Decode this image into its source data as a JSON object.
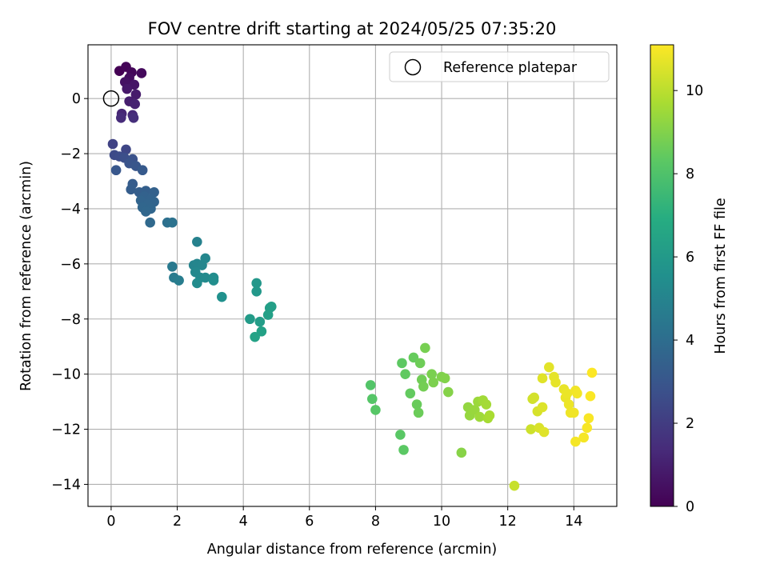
{
  "chart_data": {
    "type": "scatter",
    "title": "FOV centre drift starting at 2024/05/25 07:35:20",
    "xlabel": "Angular distance from reference (arcmin)",
    "ylabel": "Rotation from reference (arcmin)",
    "xlim": [
      -0.7,
      15.3
    ],
    "ylim": [
      -14.8,
      1.95
    ],
    "x_ticks": [
      0,
      2,
      4,
      6,
      8,
      10,
      12,
      14
    ],
    "y_ticks": [
      0,
      -2,
      -4,
      -6,
      -8,
      -10,
      -12,
      -14
    ],
    "grid": true,
    "legend": {
      "placement": "top-right",
      "entries": [
        "Reference platepar"
      ]
    },
    "reference_point": {
      "x": 0,
      "y": 0,
      "label": "Reference platepar"
    },
    "colorbar": {
      "label": "Hours from first FF file",
      "colormap": "viridis",
      "range": [
        0,
        11.1
      ],
      "ticks": [
        0,
        2,
        4,
        6,
        8,
        10
      ]
    },
    "points": [
      {
        "x": 0.25,
        "y": 1.0,
        "h": 0.0
      },
      {
        "x": 0.45,
        "y": 1.15,
        "h": 0.1
      },
      {
        "x": 0.62,
        "y": 0.95,
        "h": 0.2
      },
      {
        "x": 0.92,
        "y": 0.92,
        "h": 0.3
      },
      {
        "x": 0.55,
        "y": 0.75,
        "h": 0.4
      },
      {
        "x": 0.42,
        "y": 0.6,
        "h": 0.55
      },
      {
        "x": 0.7,
        "y": 0.5,
        "h": 0.65
      },
      {
        "x": 0.48,
        "y": 0.35,
        "h": 0.75
      },
      {
        "x": 0.75,
        "y": 0.15,
        "h": 0.85
      },
      {
        "x": 0.55,
        "y": -0.1,
        "h": 0.95
      },
      {
        "x": 0.72,
        "y": -0.2,
        "h": 1.05
      },
      {
        "x": 0.32,
        "y": -0.55,
        "h": 1.2
      },
      {
        "x": 0.65,
        "y": -0.6,
        "h": 1.3
      },
      {
        "x": 0.3,
        "y": -0.7,
        "h": 1.4
      },
      {
        "x": 0.68,
        "y": -0.7,
        "h": 1.5
      },
      {
        "x": 0.05,
        "y": -1.65,
        "h": 2.2
      },
      {
        "x": 0.45,
        "y": -1.85,
        "h": 2.35
      },
      {
        "x": 0.1,
        "y": -2.05,
        "h": 2.5
      },
      {
        "x": 0.25,
        "y": -2.1,
        "h": 2.6
      },
      {
        "x": 0.4,
        "y": -2.15,
        "h": 2.7
      },
      {
        "x": 0.65,
        "y": -2.2,
        "h": 2.8
      },
      {
        "x": 0.55,
        "y": -2.35,
        "h": 2.9
      },
      {
        "x": 0.75,
        "y": -2.45,
        "h": 3.0
      },
      {
        "x": 0.15,
        "y": -2.6,
        "h": 3.05
      },
      {
        "x": 0.95,
        "y": -2.6,
        "h": 3.15
      },
      {
        "x": 0.65,
        "y": -3.1,
        "h": 3.25
      },
      {
        "x": 0.6,
        "y": -3.3,
        "h": 3.3
      },
      {
        "x": 0.85,
        "y": -3.4,
        "h": 3.35
      },
      {
        "x": 1.05,
        "y": -3.35,
        "h": 3.4
      },
      {
        "x": 1.3,
        "y": -3.4,
        "h": 3.45
      },
      {
        "x": 1.0,
        "y": -3.55,
        "h": 3.5
      },
      {
        "x": 1.2,
        "y": -3.65,
        "h": 3.55
      },
      {
        "x": 0.9,
        "y": -3.7,
        "h": 3.6
      },
      {
        "x": 1.3,
        "y": -3.75,
        "h": 3.62
      },
      {
        "x": 1.1,
        "y": -3.85,
        "h": 3.65
      },
      {
        "x": 0.95,
        "y": -3.95,
        "h": 3.68
      },
      {
        "x": 1.2,
        "y": -4.0,
        "h": 3.7
      },
      {
        "x": 1.05,
        "y": -4.1,
        "h": 3.72
      },
      {
        "x": 1.18,
        "y": -4.5,
        "h": 3.8
      },
      {
        "x": 1.7,
        "y": -4.5,
        "h": 4.1
      },
      {
        "x": 1.85,
        "y": -4.5,
        "h": 4.2
      },
      {
        "x": 1.85,
        "y": -6.1,
        "h": 4.5
      },
      {
        "x": 1.9,
        "y": -6.5,
        "h": 4.6
      },
      {
        "x": 2.05,
        "y": -6.6,
        "h": 4.7
      },
      {
        "x": 2.6,
        "y": -5.2,
        "h": 4.9
      },
      {
        "x": 2.5,
        "y": -6.05,
        "h": 5.0
      },
      {
        "x": 2.6,
        "y": -6.0,
        "h": 5.05
      },
      {
        "x": 2.75,
        "y": -6.05,
        "h": 5.1
      },
      {
        "x": 2.85,
        "y": -5.8,
        "h": 5.15
      },
      {
        "x": 2.55,
        "y": -6.3,
        "h": 5.2
      },
      {
        "x": 2.7,
        "y": -6.5,
        "h": 5.25
      },
      {
        "x": 2.85,
        "y": -6.5,
        "h": 5.3
      },
      {
        "x": 2.6,
        "y": -6.7,
        "h": 5.35
      },
      {
        "x": 3.1,
        "y": -6.5,
        "h": 5.4
      },
      {
        "x": 3.1,
        "y": -6.6,
        "h": 5.45
      },
      {
        "x": 3.35,
        "y": -7.2,
        "h": 5.6
      },
      {
        "x": 4.4,
        "y": -6.7,
        "h": 5.9
      },
      {
        "x": 4.4,
        "y": -7.0,
        "h": 5.95
      },
      {
        "x": 4.2,
        "y": -8.0,
        "h": 6.1
      },
      {
        "x": 4.5,
        "y": -8.1,
        "h": 6.15
      },
      {
        "x": 4.8,
        "y": -7.6,
        "h": 6.2
      },
      {
        "x": 4.85,
        "y": -7.55,
        "h": 6.25
      },
      {
        "x": 4.75,
        "y": -7.85,
        "h": 6.3
      },
      {
        "x": 4.55,
        "y": -8.45,
        "h": 6.35
      },
      {
        "x": 4.35,
        "y": -8.65,
        "h": 6.4
      },
      {
        "x": 7.85,
        "y": -10.4,
        "h": 8.1
      },
      {
        "x": 7.9,
        "y": -10.9,
        "h": 8.15
      },
      {
        "x": 8.0,
        "y": -11.3,
        "h": 8.2
      },
      {
        "x": 8.75,
        "y": -12.2,
        "h": 8.25
      },
      {
        "x": 8.85,
        "y": -12.75,
        "h": 8.3
      },
      {
        "x": 8.8,
        "y": -9.6,
        "h": 8.35
      },
      {
        "x": 8.9,
        "y": -10.0,
        "h": 8.4
      },
      {
        "x": 9.05,
        "y": -10.7,
        "h": 8.45
      },
      {
        "x": 9.15,
        "y": -9.4,
        "h": 8.5
      },
      {
        "x": 9.25,
        "y": -11.1,
        "h": 8.55
      },
      {
        "x": 9.3,
        "y": -11.4,
        "h": 8.6
      },
      {
        "x": 9.35,
        "y": -9.6,
        "h": 8.65
      },
      {
        "x": 9.4,
        "y": -10.2,
        "h": 8.7
      },
      {
        "x": 9.45,
        "y": -10.45,
        "h": 8.75
      },
      {
        "x": 9.5,
        "y": -9.05,
        "h": 8.8
      },
      {
        "x": 9.7,
        "y": -10.0,
        "h": 8.85
      },
      {
        "x": 9.75,
        "y": -10.3,
        "h": 8.9
      },
      {
        "x": 10.0,
        "y": -10.1,
        "h": 8.95
      },
      {
        "x": 10.1,
        "y": -10.15,
        "h": 9.0
      },
      {
        "x": 10.2,
        "y": -10.65,
        "h": 9.05
      },
      {
        "x": 10.6,
        "y": -12.85,
        "h": 9.1
      },
      {
        "x": 10.8,
        "y": -11.2,
        "h": 9.3
      },
      {
        "x": 10.85,
        "y": -11.5,
        "h": 9.35
      },
      {
        "x": 11.0,
        "y": -11.3,
        "h": 9.4
      },
      {
        "x": 11.1,
        "y": -11.0,
        "h": 9.45
      },
      {
        "x": 11.15,
        "y": -11.55,
        "h": 9.5
      },
      {
        "x": 11.25,
        "y": -10.95,
        "h": 9.55
      },
      {
        "x": 11.35,
        "y": -11.1,
        "h": 9.6
      },
      {
        "x": 11.4,
        "y": -11.6,
        "h": 9.65
      },
      {
        "x": 11.45,
        "y": -11.5,
        "h": 9.7
      },
      {
        "x": 12.2,
        "y": -14.05,
        "h": 10.2
      },
      {
        "x": 12.7,
        "y": -12.0,
        "h": 10.3
      },
      {
        "x": 12.75,
        "y": -10.9,
        "h": 10.35
      },
      {
        "x": 12.8,
        "y": -10.85,
        "h": 10.4
      },
      {
        "x": 12.9,
        "y": -11.35,
        "h": 10.45
      },
      {
        "x": 12.95,
        "y": -11.95,
        "h": 10.5
      },
      {
        "x": 13.05,
        "y": -11.2,
        "h": 10.55
      },
      {
        "x": 13.1,
        "y": -12.1,
        "h": 10.6
      },
      {
        "x": 13.05,
        "y": -10.15,
        "h": 10.62
      },
      {
        "x": 13.25,
        "y": -9.75,
        "h": 10.65
      },
      {
        "x": 13.4,
        "y": -10.1,
        "h": 10.7
      },
      {
        "x": 13.45,
        "y": -10.3,
        "h": 10.72
      },
      {
        "x": 13.7,
        "y": -10.55,
        "h": 10.75
      },
      {
        "x": 13.75,
        "y": -10.85,
        "h": 10.78
      },
      {
        "x": 13.8,
        "y": -10.7,
        "h": 10.8
      },
      {
        "x": 13.85,
        "y": -11.1,
        "h": 10.82
      },
      {
        "x": 13.9,
        "y": -11.4,
        "h": 10.85
      },
      {
        "x": 14.0,
        "y": -11.4,
        "h": 10.88
      },
      {
        "x": 14.05,
        "y": -10.6,
        "h": 10.9
      },
      {
        "x": 14.1,
        "y": -10.7,
        "h": 10.92
      },
      {
        "x": 14.05,
        "y": -12.45,
        "h": 10.95
      },
      {
        "x": 14.3,
        "y": -12.3,
        "h": 10.97
      },
      {
        "x": 14.4,
        "y": -11.95,
        "h": 11.0
      },
      {
        "x": 14.45,
        "y": -11.6,
        "h": 11.02
      },
      {
        "x": 14.5,
        "y": -10.8,
        "h": 11.05
      },
      {
        "x": 14.55,
        "y": -9.95,
        "h": 11.08
      }
    ]
  }
}
